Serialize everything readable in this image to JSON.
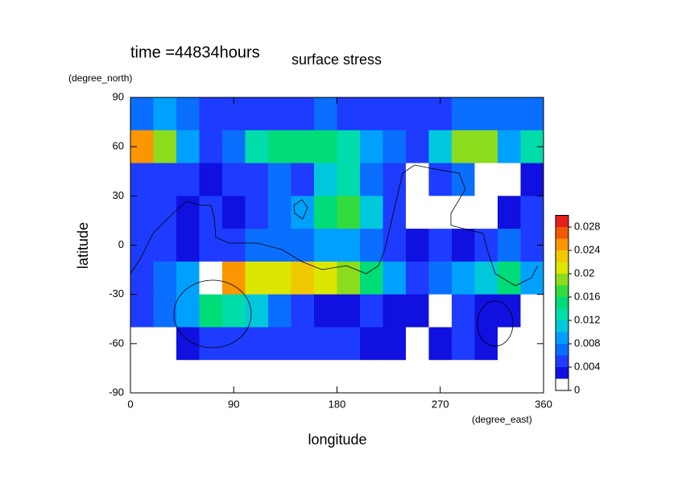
{
  "chart_data": {
    "type": "contour",
    "title": "surface stress",
    "subtitle": "time =44834hours",
    "x_label": "longitude",
    "x_units": "(degree_east)",
    "y_label": "latitude",
    "y_units": "(degree_north)",
    "xlim": [
      0,
      360
    ],
    "ylim": [
      -90,
      90
    ],
    "xticks": [
      0,
      90,
      180,
      270,
      360
    ],
    "yticks": [
      -90,
      -60,
      -30,
      0,
      30,
      60,
      90
    ],
    "x": [
      10,
      30,
      50,
      70,
      90,
      110,
      130,
      150,
      170,
      190,
      210,
      230,
      250,
      270,
      290,
      310,
      330,
      350
    ],
    "y": [
      80,
      60,
      40,
      20,
      0,
      -20,
      -40,
      -60,
      -80
    ],
    "z": [
      [
        0.007,
        0.008,
        0.007,
        0.005,
        0.004,
        0.004,
        0.005,
        0.005,
        0.006,
        0.005,
        0.004,
        0.004,
        0.005,
        0.005,
        0.006,
        0.006,
        0.006,
        0.006
      ],
      [
        0.024,
        0.018,
        0.008,
        0.005,
        0.006,
        0.012,
        0.014,
        0.015,
        0.014,
        0.012,
        0.008,
        0.006,
        0.005,
        0.01,
        0.018,
        0.019,
        0.008,
        0.012
      ],
      [
        0.005,
        0.005,
        0.004,
        0.003,
        0.005,
        0.004,
        0.006,
        0.004,
        0.01,
        0.012,
        0.006,
        0.004,
        0.001,
        0.004,
        0.006,
        0.001,
        0.001,
        0.003
      ],
      [
        0.004,
        0.005,
        0.003,
        0.004,
        0.003,
        0.004,
        0.006,
        0.008,
        0.014,
        0.016,
        0.01,
        0.005,
        0.001,
        0.001,
        0.001,
        0.001,
        0.003,
        0.004
      ],
      [
        0.005,
        0.004,
        0.003,
        0.004,
        0.005,
        0.006,
        0.007,
        0.006,
        0.008,
        0.009,
        0.006,
        0.004,
        0.003,
        0.004,
        0.003,
        0.004,
        0.007,
        0.005
      ],
      [
        0.005,
        0.006,
        0.008,
        0.031,
        0.024,
        0.02,
        0.02,
        0.022,
        0.02,
        0.018,
        0.014,
        0.008,
        0.004,
        0.006,
        0.008,
        0.01,
        0.014,
        0.008
      ],
      [
        0.004,
        0.006,
        0.008,
        0.014,
        0.012,
        0.01,
        0.006,
        0.004,
        0.003,
        0.002,
        0.004,
        0.003,
        0.002,
        0.001,
        0.004,
        0.003,
        0.003,
        0.001
      ],
      [
        0.001,
        0.001,
        0.003,
        0.004,
        0.005,
        0.005,
        0.005,
        0.004,
        0.004,
        0.004,
        0.003,
        0.002,
        0.001,
        0.003,
        0.004,
        0.003,
        0.001,
        0.001
      ],
      [
        0.001,
        0.001,
        0.001,
        0.001,
        0.001,
        0.001,
        0.001,
        0.001,
        0.001,
        0.001,
        0.001,
        0.001,
        0.001,
        0.001,
        0.001,
        0.001,
        0.001,
        0.001
      ]
    ],
    "levels": [
      0,
      0.002,
      0.004,
      0.006,
      0.008,
      0.01,
      0.012,
      0.014,
      0.016,
      0.018,
      0.02,
      0.022,
      0.024,
      0.026,
      0.028,
      0.03
    ],
    "colors": [
      "#ffffff",
      "#1010e0",
      "#1e3cff",
      "#0a6eff",
      "#00a0ff",
      "#00c8dc",
      "#00dcaa",
      "#00dc78",
      "#32dc3c",
      "#8cdc1e",
      "#dce600",
      "#f0c800",
      "#fa9600",
      "#f05a00",
      "#e61e1e"
    ],
    "over_color": "#ffffff",
    "colorbar_ticks": [
      0,
      0.004,
      0.008,
      0.012,
      0.016,
      0.02,
      0.024,
      0.028
    ]
  }
}
